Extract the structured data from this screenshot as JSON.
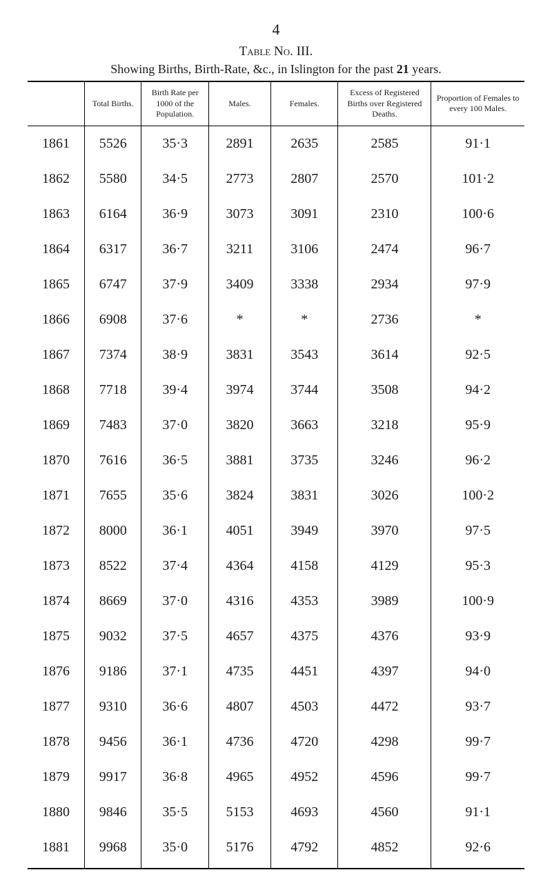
{
  "page_number": "4",
  "table_title": "Table No. III.",
  "subtitle_prefix": "Showing Births, Birth-Rate, &c., in Islington for the past ",
  "subtitle_bold": "21",
  "subtitle_suffix": " years.",
  "columns": [
    "",
    "Total Births.",
    "Birth Rate per 1000 of the Population.",
    "Males.",
    "Females.",
    "Excess of Registered Births over Registered Deaths.",
    "Proportion of Females to every 100 Males."
  ],
  "rows": [
    [
      "1861",
      "5526",
      "35·3",
      "2891",
      "2635",
      "2585",
      "91·1"
    ],
    [
      "1862",
      "5580",
      "34·5",
      "2773",
      "2807",
      "2570",
      "101·2"
    ],
    [
      "1863",
      "6164",
      "36·9",
      "3073",
      "3091",
      "2310",
      "100·6"
    ],
    [
      "1864",
      "6317",
      "36·7",
      "3211",
      "3106",
      "2474",
      "96·7"
    ],
    [
      "1865",
      "6747",
      "37·9",
      "3409",
      "3338",
      "2934",
      "97·9"
    ],
    [
      "1866",
      "6908",
      "37·6",
      "*",
      "*",
      "2736",
      "*"
    ],
    [
      "1867",
      "7374",
      "38·9",
      "3831",
      "3543",
      "3614",
      "92·5"
    ],
    [
      "1868",
      "7718",
      "39·4",
      "3974",
      "3744",
      "3508",
      "94·2"
    ],
    [
      "1869",
      "7483",
      "37·0",
      "3820",
      "3663",
      "3218",
      "95·9"
    ],
    [
      "1870",
      "7616",
      "36·5",
      "3881",
      "3735",
      "3246",
      "96·2"
    ],
    [
      "1871",
      "7655",
      "35·6",
      "3824",
      "3831",
      "3026",
      "100·2"
    ],
    [
      "1872",
      "8000",
      "36·1",
      "4051",
      "3949",
      "3970",
      "97·5"
    ],
    [
      "1873",
      "8522",
      "37·4",
      "4364",
      "4158",
      "4129",
      "95·3"
    ],
    [
      "1874",
      "8669",
      "37·0",
      "4316",
      "4353",
      "3989",
      "100·9"
    ],
    [
      "1875",
      "9032",
      "37·5",
      "4657",
      "4375",
      "4376",
      "93·9"
    ],
    [
      "1876",
      "9186",
      "37·1",
      "4735",
      "4451",
      "4397",
      "94·0"
    ],
    [
      "1877",
      "9310",
      "36·6",
      "4807",
      "4503",
      "4472",
      "93·7"
    ],
    [
      "1878",
      "9456",
      "36·1",
      "4736",
      "4720",
      "4298",
      "99·7"
    ],
    [
      "1879",
      "9917",
      "36·8",
      "4965",
      "4952",
      "4596",
      "99·7"
    ],
    [
      "1880",
      "9846",
      "35·5",
      "5153",
      "4693",
      "4560",
      "91·1"
    ],
    [
      "1881",
      "9968",
      "35·0",
      "5176",
      "4792",
      "4852",
      "92·6"
    ]
  ]
}
